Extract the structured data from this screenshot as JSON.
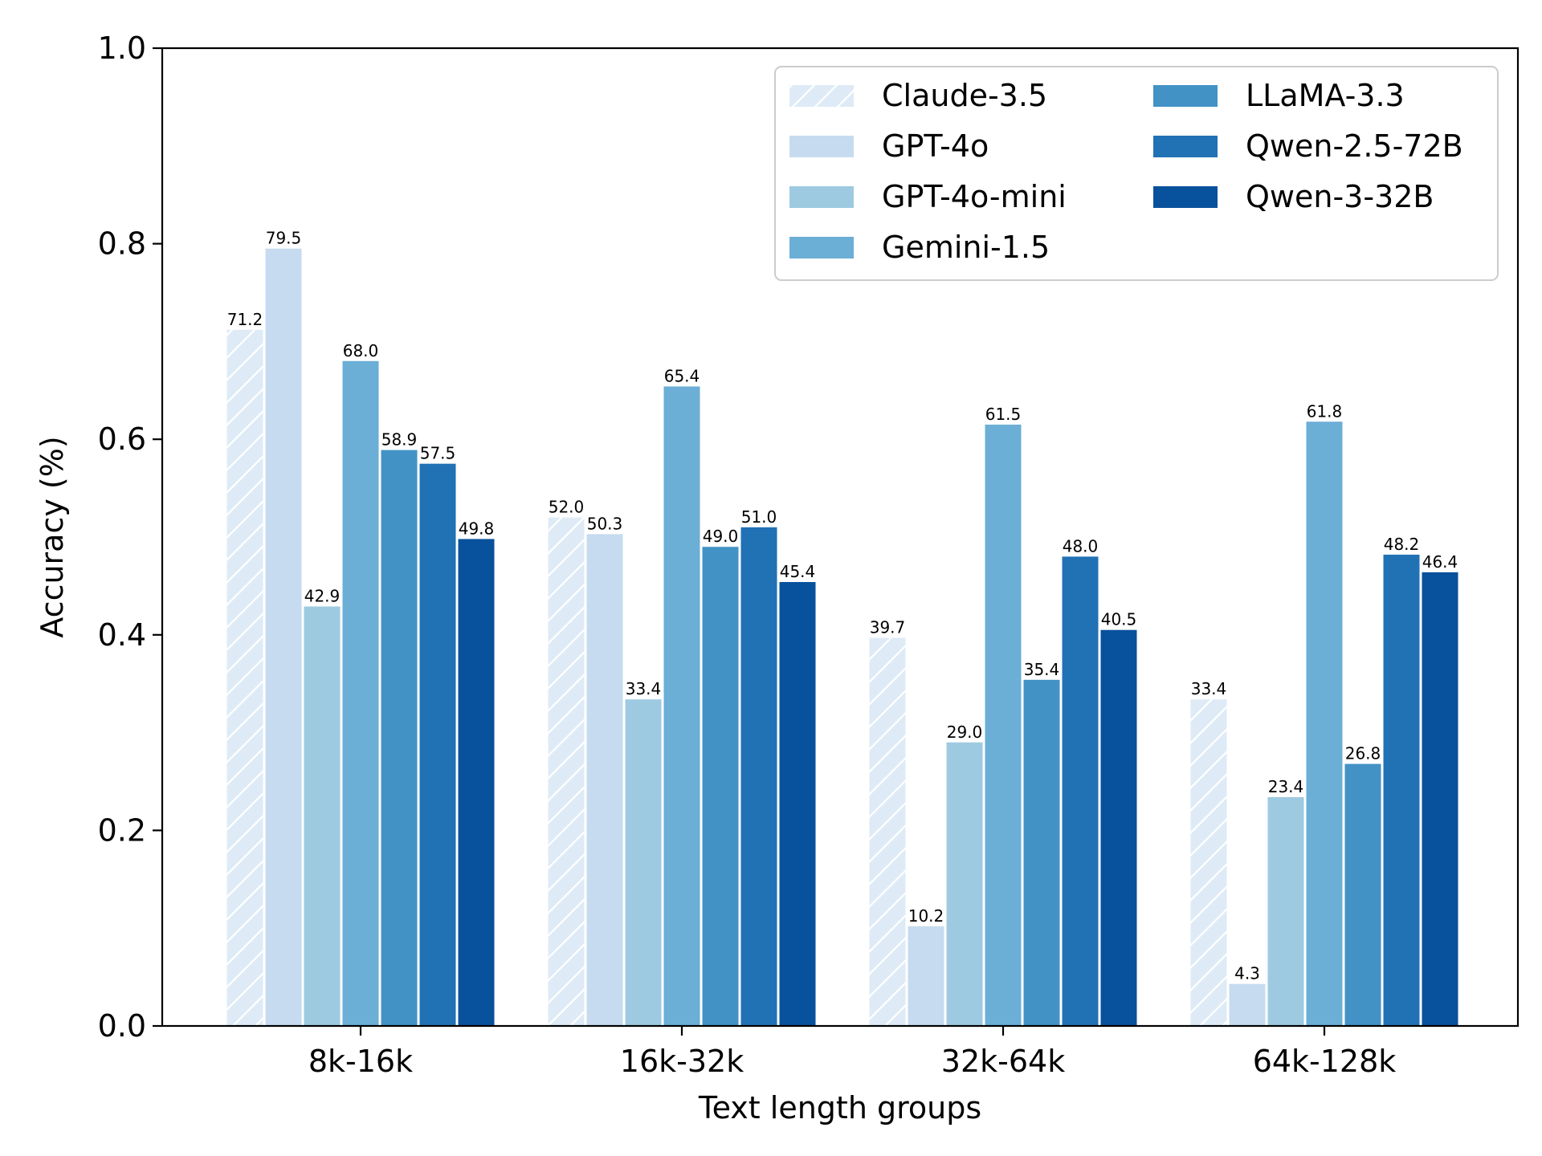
{
  "chart_data": {
    "type": "bar",
    "title": "",
    "xlabel": "Text length groups",
    "ylabel": "Accuracy (%)",
    "ylim": [
      0,
      1.0
    ],
    "yticks": [
      "0.0",
      "0.2",
      "0.4",
      "0.6",
      "0.8",
      "1.0"
    ],
    "categories": [
      "8k-16k",
      "16k-32k",
      "32k-64k",
      "64k-128k"
    ],
    "grid": false,
    "legend_placement": "top-right",
    "legend_columns": 2,
    "series": [
      {
        "name": "Claude-3.5",
        "color": "#deebf7",
        "hatch": true,
        "values": [
          0.712,
          0.52,
          0.397,
          0.334
        ],
        "labels": [
          "71.2",
          "52.0",
          "39.7",
          "33.4"
        ]
      },
      {
        "name": "GPT-4o",
        "color": "#c6dbef",
        "hatch": false,
        "values": [
          0.795,
          0.503,
          0.102,
          0.043
        ],
        "labels": [
          "79.5",
          "50.3",
          "10.2",
          "4.3"
        ]
      },
      {
        "name": "GPT-4o-mini",
        "color": "#9ecae1",
        "hatch": false,
        "values": [
          0.429,
          0.334,
          0.29,
          0.234
        ],
        "labels": [
          "42.9",
          "33.4",
          "29.0",
          "23.4"
        ]
      },
      {
        "name": "Gemini-1.5",
        "color": "#6baed6",
        "hatch": false,
        "values": [
          0.68,
          0.654,
          0.615,
          0.618
        ],
        "labels": [
          "68.0",
          "65.4",
          "61.5",
          "61.8"
        ]
      },
      {
        "name": "LLaMA-3.3",
        "color": "#4292c6",
        "hatch": false,
        "values": [
          0.589,
          0.49,
          0.354,
          0.268
        ],
        "labels": [
          "58.9",
          "49.0",
          "35.4",
          "26.8"
        ]
      },
      {
        "name": "Qwen-2.5-72B",
        "color": "#2171b5",
        "hatch": false,
        "values": [
          0.575,
          0.51,
          0.48,
          0.482
        ],
        "labels": [
          "57.5",
          "51.0",
          "48.0",
          "48.2"
        ]
      },
      {
        "name": "Qwen-3-32B",
        "color": "#08519c",
        "hatch": false,
        "values": [
          0.498,
          0.454,
          0.405,
          0.464
        ],
        "labels": [
          "49.8",
          "45.4",
          "40.5",
          "46.4"
        ]
      }
    ]
  }
}
